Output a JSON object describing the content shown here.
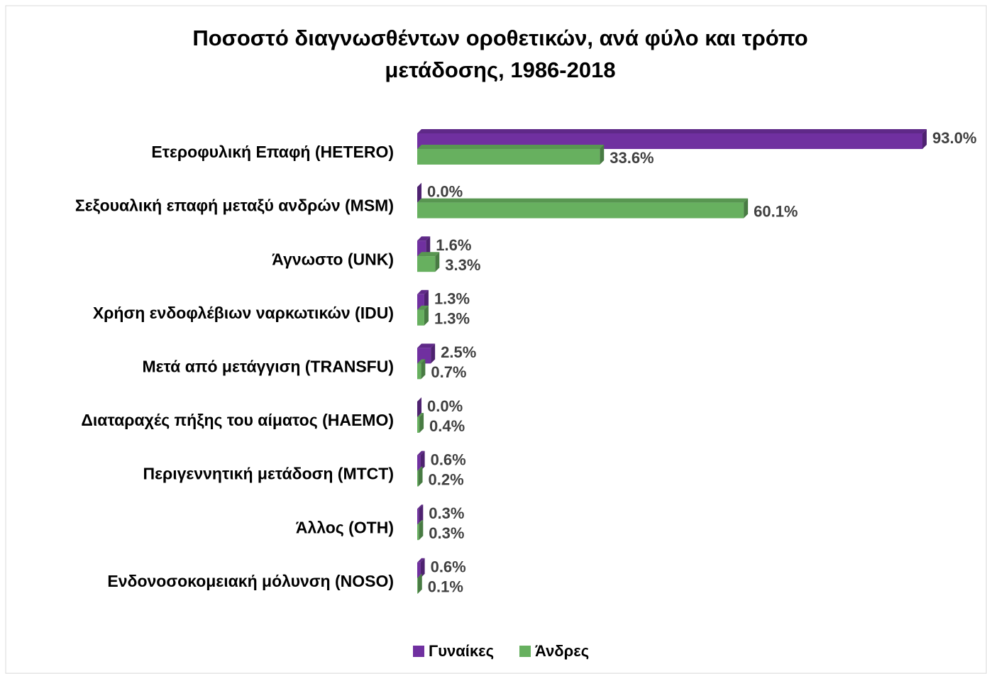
{
  "chart_data": {
    "type": "bar",
    "orientation": "horizontal",
    "title": "Ποσοστό διαγνωσθέντων οροθετικών, ανά φύλο και τρόπο μετάδοσης, 1986-2018",
    "categories": [
      "Ετεροφυλική Επαφή (HETERO)",
      "Σεξουαλική επαφή μεταξύ ανδρών  (MSM)",
      "Άγνωστο (UNK)",
      "Χρήση ενδοφλέβιων ναρκωτικών (IDU)",
      "Μετά από μετάγγιση (TRANSFU)",
      "Διαταραχές πήξης του αίματος (HAEMO)",
      "Περιγεννητική μετάδοση (MTCT)",
      "Άλλος (OTH)",
      "Ενδονοσοκομειακή μόλυνση (NOSO)"
    ],
    "series": [
      {
        "name": "Γυναίκες",
        "color": "#7030a0",
        "values": [
          93.0,
          0.0,
          1.6,
          1.3,
          2.5,
          0.0,
          0.6,
          0.3,
          0.6
        ],
        "value_labels": [
          "93.0%",
          "0.0%",
          "1.6%",
          "1.3%",
          "2.5%",
          "0.0%",
          "0.6%",
          "0.3%",
          "0.6%"
        ]
      },
      {
        "name": "Άνδρες",
        "color": "#67b05f",
        "values": [
          33.6,
          60.1,
          3.3,
          1.3,
          0.7,
          0.4,
          0.2,
          0.3,
          0.1
        ],
        "value_labels": [
          "33.6%",
          "60.1%",
          "3.3%",
          "1.3%",
          "0.7%",
          "0.4%",
          "0.2%",
          "0.3%",
          "0.1%"
        ]
      }
    ],
    "legend": "bottom"
  }
}
